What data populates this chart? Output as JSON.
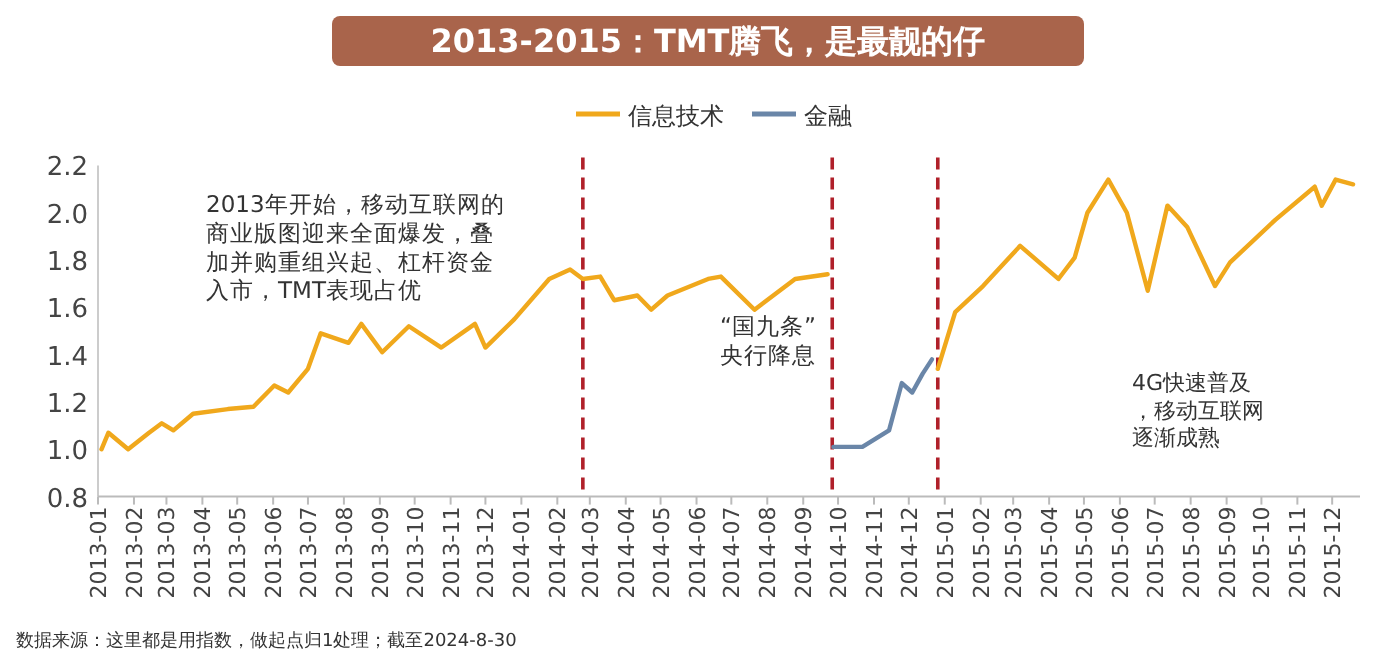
{
  "chart_data": {
    "type": "line",
    "title": "2013-2015：TMT腾飞，是最靓的仔",
    "legend": "top",
    "series": [
      {
        "name": "信息技术",
        "color": "#f0a81c",
        "x": [
          "2013-01-04",
          "2013-01-10",
          "2013-01-27",
          "2013-02-14",
          "2013-02-25",
          "2013-03-07",
          "2013-03-24",
          "2013-04-23",
          "2013-05-15",
          "2013-06-02",
          "2013-06-14",
          "2013-07-01",
          "2013-07-12",
          "2013-08-05",
          "2013-08-16",
          "2013-09-03",
          "2013-09-26",
          "2013-10-24",
          "2013-11-22",
          "2013-12-01",
          "2013-12-26",
          "2014-01-25",
          "2014-02-12",
          "2014-02-23",
          "2014-03-10",
          "2014-03-22",
          "2014-04-11",
          "2014-04-23",
          "2014-05-07",
          "2014-06-11",
          "2014-06-22",
          "2014-07-21",
          "2014-08-25",
          "2014-09-22",
          "2014-12-26",
          "2015-01-10",
          "2015-02-03",
          "2015-03-07",
          "2015-04-09",
          "2015-04-23",
          "2015-05-04",
          "2015-05-22",
          "2015-06-07",
          "2015-06-25",
          "2015-07-12",
          "2015-07-29",
          "2015-08-22",
          "2015-09-04",
          "2015-10-13",
          "2015-11-16",
          "2015-11-22",
          "2015-12-04",
          "2015-12-19"
        ],
        "values": [
          1.0,
          1.07,
          1.0,
          1.07,
          1.11,
          1.08,
          1.15,
          1.17,
          1.18,
          1.27,
          1.24,
          1.34,
          1.49,
          1.45,
          1.53,
          1.41,
          1.52,
          1.43,
          1.53,
          1.43,
          1.55,
          1.72,
          1.76,
          1.72,
          1.73,
          1.63,
          1.65,
          1.59,
          1.65,
          1.72,
          1.73,
          1.59,
          1.72,
          1.74,
          1.34,
          1.58,
          1.69,
          1.86,
          1.72,
          1.81,
          2.0,
          2.14,
          2.0,
          1.67,
          2.03,
          1.94,
          1.69,
          1.79,
          1.97,
          2.11,
          2.03,
          2.14,
          2.12
        ]
      },
      {
        "name": "金融",
        "color": "#6a86a8",
        "x": [
          "2014-09-27",
          "2014-10-22",
          "2014-11-14",
          "2014-11-25",
          "2014-12-04",
          "2014-12-13",
          "2014-12-21"
        ],
        "values": [
          1.01,
          1.01,
          1.08,
          1.28,
          1.24,
          1.32,
          1.38
        ]
      }
    ],
    "xlim": [
      "2013-01-01",
      "2015-12-25"
    ],
    "xticks": [
      "2013-01",
      "2013-02",
      "2013-03",
      "2013-04",
      "2013-05",
      "2013-06",
      "2013-07",
      "2013-08",
      "2013-09",
      "2013-10",
      "2013-11",
      "2013-12",
      "2014-01",
      "2014-02",
      "2014-03",
      "2014-04",
      "2014-05",
      "2014-06",
      "2014-07",
      "2014-08",
      "2014-09",
      "2014-10",
      "2014-11",
      "2014-12",
      "2015-01",
      "2015-02",
      "2015-03",
      "2015-04",
      "2015-05",
      "2015-06",
      "2015-07",
      "2015-08",
      "2015-09",
      "2015-10",
      "2015-11",
      "2015-12"
    ],
    "ylim": [
      0.8,
      2.2
    ],
    "yticks": [
      0.8,
      {
        "value": 1,
        "label": "1.0"
      },
      1.2,
      1.4,
      1.6,
      1.8,
      {
        "value": 2,
        "label": "2.0"
      },
      2.2
    ],
    "ref_lines": [
      {
        "axis": "x",
        "value": "2014-02-23",
        "color": "#b0202a",
        "line_style": "dashed"
      },
      {
        "axis": "x",
        "value": "2014-09-26",
        "color": "#b0202a",
        "line_style": "dashed"
      },
      {
        "axis": "x",
        "value": "2014-12-26",
        "color": "#b0202a",
        "line_style": "dashed"
      }
    ],
    "annotations": [
      {
        "text": "2013年开始，移动互联网的商业版图迎来全面爆发，叠加并购重组兴起、杠杆资金入市，TMT表现占优"
      },
      {
        "text": "“国九条”央行降息"
      },
      {
        "text": "4G快速普及，移动互联网逐渐成熟"
      },
      {
        "text": "数据来源：这里都是用指数，做起点归1处理；截至2024-8-30"
      }
    ]
  }
}
